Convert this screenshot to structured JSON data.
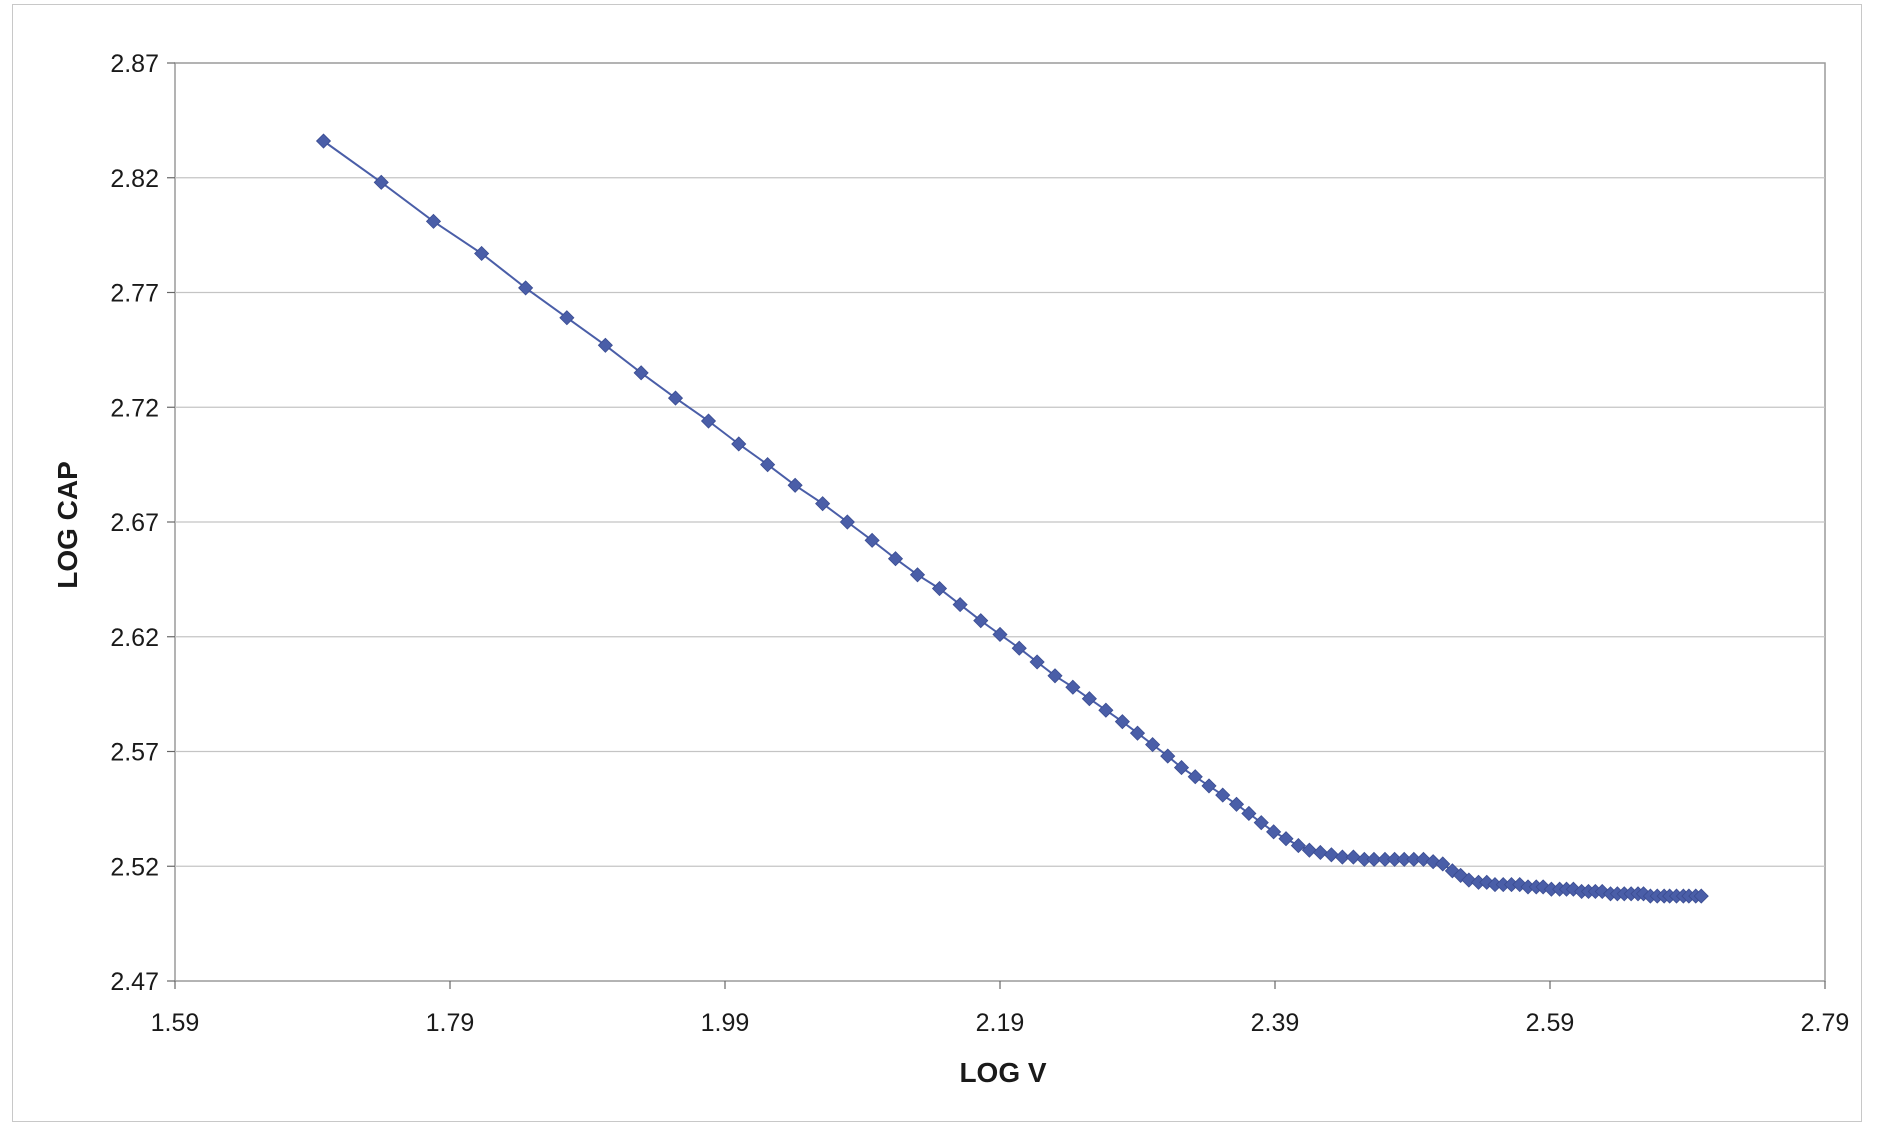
{
  "chart_data": {
    "type": "line",
    "title": "",
    "xlabel": "LOG V",
    "ylabel": "LOG CAP",
    "xlim": [
      1.59,
      2.79
    ],
    "ylim": [
      2.47,
      2.87
    ],
    "x_ticks": [
      "1.59",
      "1.79",
      "1.99",
      "2.19",
      "2.39",
      "2.59",
      "2.79"
    ],
    "y_ticks": [
      "2.47",
      "2.52",
      "2.57",
      "2.62",
      "2.67",
      "2.72",
      "2.77",
      "2.82",
      "2.87"
    ],
    "grid": "horizontal",
    "legend": "none",
    "marker": "diamond",
    "series_color": "#4a5ea8",
    "series": [
      {
        "points": [
          [
            1.698,
            2.836
          ],
          [
            1.74,
            2.818
          ],
          [
            1.778,
            2.801
          ],
          [
            1.813,
            2.787
          ],
          [
            1.845,
            2.772
          ],
          [
            1.875,
            2.759
          ],
          [
            1.903,
            2.747
          ],
          [
            1.929,
            2.735
          ],
          [
            1.954,
            2.724
          ],
          [
            1.978,
            2.714
          ],
          [
            2.0,
            2.704
          ],
          [
            2.021,
            2.695
          ],
          [
            2.041,
            2.686
          ],
          [
            2.061,
            2.678
          ],
          [
            2.079,
            2.67
          ],
          [
            2.097,
            2.662
          ],
          [
            2.114,
            2.654
          ],
          [
            2.13,
            2.647
          ],
          [
            2.146,
            2.641
          ],
          [
            2.161,
            2.634
          ],
          [
            2.176,
            2.627
          ],
          [
            2.19,
            2.621
          ],
          [
            2.204,
            2.615
          ],
          [
            2.217,
            2.609
          ],
          [
            2.23,
            2.603
          ],
          [
            2.243,
            2.598
          ],
          [
            2.255,
            2.593
          ],
          [
            2.267,
            2.588
          ],
          [
            2.279,
            2.583
          ],
          [
            2.29,
            2.578
          ],
          [
            2.301,
            2.573
          ],
          [
            2.312,
            2.568
          ],
          [
            2.322,
            2.563
          ],
          [
            2.332,
            2.559
          ],
          [
            2.342,
            2.555
          ],
          [
            2.352,
            2.551
          ],
          [
            2.362,
            2.547
          ],
          [
            2.371,
            2.543
          ],
          [
            2.38,
            2.539
          ],
          [
            2.389,
            2.535
          ],
          [
            2.398,
            2.532
          ],
          [
            2.407,
            2.529
          ],
          [
            2.415,
            2.527
          ],
          [
            2.423,
            2.526
          ],
          [
            2.431,
            2.525
          ],
          [
            2.439,
            2.524
          ],
          [
            2.447,
            2.524
          ],
          [
            2.455,
            2.523
          ],
          [
            2.462,
            2.523
          ],
          [
            2.47,
            2.523
          ],
          [
            2.477,
            2.523
          ],
          [
            2.484,
            2.523
          ],
          [
            2.491,
            2.523
          ],
          [
            2.498,
            2.523
          ],
          [
            2.505,
            2.522
          ],
          [
            2.512,
            2.521
          ],
          [
            2.519,
            2.518
          ],
          [
            2.525,
            2.516
          ],
          [
            2.531,
            2.514
          ],
          [
            2.538,
            2.513
          ],
          [
            2.544,
            2.513
          ],
          [
            2.55,
            2.512
          ],
          [
            2.556,
            2.512
          ],
          [
            2.562,
            2.512
          ],
          [
            2.568,
            2.512
          ],
          [
            2.574,
            2.511
          ],
          [
            2.58,
            2.511
          ],
          [
            2.585,
            2.511
          ],
          [
            2.591,
            2.51
          ],
          [
            2.597,
            2.51
          ],
          [
            2.602,
            2.51
          ],
          [
            2.607,
            2.51
          ],
          [
            2.613,
            2.509
          ],
          [
            2.618,
            2.509
          ],
          [
            2.623,
            2.509
          ],
          [
            2.628,
            2.509
          ],
          [
            2.634,
            2.508
          ],
          [
            2.639,
            2.508
          ],
          [
            2.644,
            2.508
          ],
          [
            2.649,
            2.508
          ],
          [
            2.654,
            2.508
          ],
          [
            2.658,
            2.508
          ],
          [
            2.663,
            2.507
          ],
          [
            2.668,
            2.507
          ],
          [
            2.673,
            2.507
          ],
          [
            2.677,
            2.507
          ],
          [
            2.682,
            2.507
          ],
          [
            2.687,
            2.507
          ],
          [
            2.691,
            2.507
          ],
          [
            2.696,
            2.507
          ],
          [
            2.7,
            2.507
          ]
        ]
      }
    ]
  }
}
